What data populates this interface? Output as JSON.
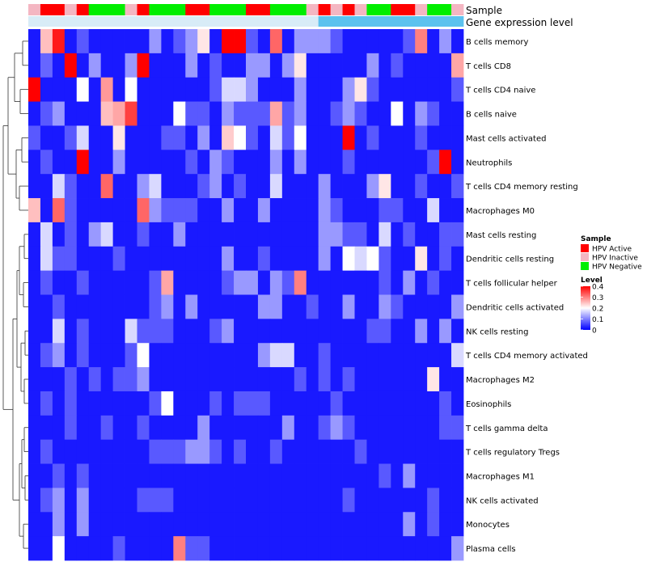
{
  "chart_data": {
    "type": "heatmap",
    "title": "",
    "annotation_tracks": [
      "Sample",
      "Gene expression level"
    ],
    "rows": [
      "B cells memory",
      "T cells CD8",
      "T cells CD4 naive",
      "B cells naive",
      "Mast cells activated",
      "Neutrophils",
      "T cells CD4 memory resting",
      "Macrophages M0",
      "Mast cells resting",
      "Dendritic cells resting",
      "T cells follicular helper",
      "Dendritic cells activated",
      "NK cells resting",
      "T cells CD4 memory activated",
      "Macrophages M2",
      "Eosinophils",
      "T cells gamma delta",
      "T cells regulatory  Tregs",
      "Macrophages M1",
      "NK cells activated",
      "Monocytes",
      "Plasma cells"
    ],
    "sample_groups": [
      "Inactive",
      "Active",
      "Active",
      "Inactive",
      "Active",
      "Negative",
      "Negative",
      "Negative",
      "Inactive",
      "Active",
      "Negative",
      "Negative",
      "Negative",
      "Active",
      "Active",
      "Negative",
      "Negative",
      "Negative",
      "Active",
      "Active",
      "Negative",
      "Negative",
      "Negative",
      "Inactive",
      "Active",
      "Inactive",
      "Active",
      "Inactive",
      "Negative",
      "Negative",
      "Active",
      "Active",
      "Inactive",
      "Negative",
      "Negative",
      "Inactive"
    ],
    "gene_expression_level": [
      0,
      0,
      0,
      0,
      0,
      0,
      0,
      0,
      0,
      0,
      0,
      0,
      0,
      0,
      0,
      0,
      0,
      0,
      0,
      0,
      0,
      0,
      0,
      0,
      1,
      1,
      1,
      1,
      1,
      1,
      1,
      1,
      1,
      1,
      1,
      1
    ],
    "values": [
      [
        0.02,
        0.25,
        0.38,
        0.02,
        0.07,
        0.02,
        0.02,
        0.02,
        0.02,
        0.02,
        0.12,
        0.02,
        0.07,
        0.12,
        0.22,
        0.02,
        0.4,
        0.4,
        0.07,
        0.02,
        0.32,
        0.02,
        0.12,
        0.12,
        0.12,
        0.07,
        0.02,
        0.02,
        0.02,
        0.02,
        0.02,
        0.07,
        0.3,
        0.02,
        0.12,
        0.02
      ],
      [
        0.02,
        0.08,
        0.02,
        0.4,
        0.02,
        0.12,
        0.02,
        0.02,
        0.12,
        0.4,
        0.02,
        0.02,
        0.02,
        0.12,
        0.02,
        0.07,
        0.02,
        0.02,
        0.12,
        0.12,
        0.02,
        0.12,
        0.22,
        0.02,
        0.02,
        0.02,
        0.02,
        0.02,
        0.12,
        0.02,
        0.07,
        0.02,
        0.02,
        0.02,
        0.02,
        0.27
      ],
      [
        0.4,
        0.02,
        0.02,
        0.02,
        0.2,
        0.02,
        0.28,
        0.02,
        0.2,
        0.02,
        0.02,
        0.02,
        0.02,
        0.02,
        0.02,
        0.07,
        0.17,
        0.17,
        0.12,
        0.02,
        0.02,
        0.02,
        0.12,
        0.02,
        0.02,
        0.02,
        0.12,
        0.22,
        0.07,
        0.02,
        0.02,
        0.02,
        0.02,
        0.02,
        0.02,
        0.07
      ],
      [
        0.02,
        0.07,
        0.12,
        0.02,
        0.02,
        0.02,
        0.25,
        0.27,
        0.35,
        0.02,
        0.02,
        0.02,
        0.2,
        0.07,
        0.07,
        0.02,
        0.12,
        0.07,
        0.07,
        0.07,
        0.27,
        0.07,
        0.12,
        0.02,
        0.02,
        0.07,
        0.12,
        0.07,
        0.02,
        0.02,
        0.2,
        0.02,
        0.12,
        0.07,
        0.02,
        0.02
      ],
      [
        0.07,
        0.02,
        0.02,
        0.07,
        0.17,
        0.02,
        0.02,
        0.22,
        0.02,
        0.02,
        0.02,
        0.07,
        0.07,
        0.02,
        0.12,
        0.02,
        0.24,
        0.2,
        0.07,
        0.02,
        0.17,
        0.07,
        0.2,
        0.02,
        0.02,
        0.02,
        0.4,
        0.02,
        0.07,
        0.02,
        0.02,
        0.02,
        0.07,
        0.02,
        0.02,
        0.02
      ],
      [
        0.02,
        0.07,
        0.02,
        0.02,
        0.4,
        0.02,
        0.02,
        0.12,
        0.02,
        0.02,
        0.02,
        0.02,
        0.02,
        0.07,
        0.02,
        0.12,
        0.07,
        0.02,
        0.02,
        0.02,
        0.12,
        0.02,
        0.12,
        0.02,
        0.02,
        0.02,
        0.07,
        0.02,
        0.02,
        0.02,
        0.02,
        0.02,
        0.02,
        0.07,
        0.4,
        0.02
      ],
      [
        0.02,
        0.02,
        0.17,
        0.07,
        0.02,
        0.02,
        0.32,
        0.02,
        0.02,
        0.12,
        0.17,
        0.02,
        0.02,
        0.02,
        0.07,
        0.12,
        0.02,
        0.07,
        0.02,
        0.02,
        0.17,
        0.02,
        0.02,
        0.02,
        0.12,
        0.02,
        0.02,
        0.02,
        0.12,
        0.22,
        0.02,
        0.02,
        0.07,
        0.02,
        0.02,
        0.07
      ],
      [
        0.25,
        0.02,
        0.32,
        0.07,
        0.02,
        0.02,
        0.02,
        0.02,
        0.02,
        0.32,
        0.12,
        0.07,
        0.07,
        0.07,
        0.02,
        0.02,
        0.12,
        0.02,
        0.02,
        0.12,
        0.02,
        0.02,
        0.02,
        0.02,
        0.12,
        0.07,
        0.02,
        0.02,
        0.02,
        0.07,
        0.07,
        0.02,
        0.02,
        0.17,
        0.02,
        0.02
      ],
      [
        0.02,
        0.17,
        0.02,
        0.07,
        0.02,
        0.12,
        0.17,
        0.02,
        0.02,
        0.07,
        0.02,
        0.02,
        0.12,
        0.02,
        0.02,
        0.02,
        0.02,
        0.02,
        0.02,
        0.02,
        0.02,
        0.02,
        0.02,
        0.02,
        0.12,
        0.12,
        0.07,
        0.07,
        0.02,
        0.17,
        0.02,
        0.07,
        0.02,
        0.02,
        0.07,
        0.07
      ],
      [
        0.02,
        0.17,
        0.07,
        0.07,
        0.02,
        0.02,
        0.02,
        0.07,
        0.02,
        0.02,
        0.02,
        0.02,
        0.02,
        0.02,
        0.02,
        0.02,
        0.12,
        0.02,
        0.02,
        0.07,
        0.02,
        0.02,
        0.02,
        0.02,
        0.12,
        0.02,
        0.2,
        0.17,
        0.2,
        0.07,
        0.02,
        0.02,
        0.22,
        0.02,
        0.07,
        0.02
      ],
      [
        0.02,
        0.07,
        0.02,
        0.02,
        0.07,
        0.02,
        0.02,
        0.02,
        0.02,
        0.02,
        0.07,
        0.27,
        0.02,
        0.02,
        0.02,
        0.02,
        0.07,
        0.12,
        0.12,
        0.02,
        0.12,
        0.07,
        0.3,
        0.02,
        0.02,
        0.02,
        0.02,
        0.02,
        0.02,
        0.07,
        0.02,
        0.12,
        0.02,
        0.07,
        0.02,
        0.02
      ],
      [
        0.02,
        0.02,
        0.07,
        0.02,
        0.02,
        0.02,
        0.02,
        0.02,
        0.02,
        0.02,
        0.07,
        0.12,
        0.02,
        0.12,
        0.02,
        0.02,
        0.02,
        0.02,
        0.02,
        0.12,
        0.12,
        0.02,
        0.02,
        0.07,
        0.02,
        0.02,
        0.12,
        0.02,
        0.02,
        0.12,
        0.07,
        0.02,
        0.02,
        0.02,
        0.02,
        0.12
      ],
      [
        0.02,
        0.02,
        0.17,
        0.02,
        0.07,
        0.02,
        0.02,
        0.02,
        0.17,
        0.07,
        0.07,
        0.07,
        0.02,
        0.02,
        0.02,
        0.07,
        0.12,
        0.02,
        0.02,
        0.02,
        0.02,
        0.02,
        0.02,
        0.02,
        0.02,
        0.02,
        0.02,
        0.02,
        0.07,
        0.07,
        0.02,
        0.02,
        0.12,
        0.02,
        0.12,
        0.02
      ],
      [
        0.02,
        0.07,
        0.12,
        0.02,
        0.07,
        0.02,
        0.02,
        0.02,
        0.07,
        0.2,
        0.02,
        0.02,
        0.02,
        0.02,
        0.02,
        0.02,
        0.02,
        0.02,
        0.02,
        0.12,
        0.17,
        0.17,
        0.02,
        0.02,
        0.07,
        0.02,
        0.02,
        0.02,
        0.02,
        0.02,
        0.02,
        0.02,
        0.02,
        0.02,
        0.02,
        0.17
      ],
      [
        0.02,
        0.02,
        0.02,
        0.07,
        0.02,
        0.07,
        0.02,
        0.07,
        0.07,
        0.12,
        0.02,
        0.02,
        0.02,
        0.02,
        0.02,
        0.02,
        0.02,
        0.02,
        0.02,
        0.02,
        0.02,
        0.02,
        0.07,
        0.02,
        0.07,
        0.02,
        0.07,
        0.02,
        0.02,
        0.02,
        0.02,
        0.02,
        0.02,
        0.22,
        0.02,
        0.02
      ],
      [
        0.02,
        0.07,
        0.02,
        0.07,
        0.02,
        0.02,
        0.02,
        0.02,
        0.02,
        0.02,
        0.07,
        0.2,
        0.02,
        0.02,
        0.02,
        0.07,
        0.02,
        0.07,
        0.07,
        0.07,
        0.02,
        0.02,
        0.02,
        0.02,
        0.02,
        0.07,
        0.02,
        0.02,
        0.02,
        0.02,
        0.02,
        0.02,
        0.02,
        0.02,
        0.07,
        0.02
      ],
      [
        0.02,
        0.02,
        0.02,
        0.07,
        0.02,
        0.02,
        0.07,
        0.02,
        0.02,
        0.07,
        0.02,
        0.02,
        0.02,
        0.02,
        0.12,
        0.02,
        0.02,
        0.02,
        0.02,
        0.02,
        0.02,
        0.12,
        0.02,
        0.02,
        0.07,
        0.12,
        0.07,
        0.02,
        0.02,
        0.02,
        0.02,
        0.02,
        0.02,
        0.02,
        0.07,
        0.07
      ],
      [
        0.02,
        0.07,
        0.02,
        0.02,
        0.02,
        0.02,
        0.02,
        0.02,
        0.02,
        0.02,
        0.07,
        0.07,
        0.07,
        0.12,
        0.12,
        0.07,
        0.02,
        0.07,
        0.02,
        0.02,
        0.07,
        0.02,
        0.02,
        0.02,
        0.02,
        0.02,
        0.02,
        0.07,
        0.02,
        0.02,
        0.02,
        0.02,
        0.02,
        0.02,
        0.02,
        0.02
      ],
      [
        0.02,
        0.02,
        0.07,
        0.02,
        0.07,
        0.02,
        0.02,
        0.02,
        0.02,
        0.02,
        0.02,
        0.02,
        0.02,
        0.02,
        0.02,
        0.02,
        0.02,
        0.02,
        0.02,
        0.02,
        0.02,
        0.02,
        0.02,
        0.02,
        0.02,
        0.02,
        0.02,
        0.02,
        0.02,
        0.07,
        0.02,
        0.12,
        0.02,
        0.02,
        0.02,
        0.02
      ],
      [
        0.02,
        0.07,
        0.12,
        0.02,
        0.12,
        0.02,
        0.02,
        0.02,
        0.02,
        0.07,
        0.07,
        0.07,
        0.02,
        0.02,
        0.02,
        0.02,
        0.02,
        0.02,
        0.02,
        0.02,
        0.02,
        0.02,
        0.02,
        0.02,
        0.02,
        0.02,
        0.07,
        0.02,
        0.02,
        0.02,
        0.02,
        0.02,
        0.02,
        0.07,
        0.02,
        0.02
      ],
      [
        0.02,
        0.02,
        0.12,
        0.02,
        0.12,
        0.02,
        0.02,
        0.02,
        0.02,
        0.02,
        0.02,
        0.02,
        0.02,
        0.02,
        0.02,
        0.02,
        0.02,
        0.02,
        0.02,
        0.02,
        0.02,
        0.02,
        0.02,
        0.02,
        0.02,
        0.02,
        0.02,
        0.02,
        0.02,
        0.02,
        0.02,
        0.12,
        0.02,
        0.07,
        0.02,
        0.02
      ],
      [
        0.02,
        0.02,
        0.2,
        0.02,
        0.02,
        0.02,
        0.02,
        0.07,
        0.02,
        0.02,
        0.02,
        0.02,
        0.3,
        0.07,
        0.07,
        0.02,
        0.02,
        0.02,
        0.02,
        0.02,
        0.02,
        0.02,
        0.02,
        0.02,
        0.02,
        0.02,
        0.02,
        0.02,
        0.02,
        0.02,
        0.02,
        0.02,
        0.02,
        0.02,
        0.02,
        0.12
      ]
    ],
    "legend": {
      "sample": {
        "title": "Sample",
        "entries": [
          {
            "key": "Active",
            "label": "HPV Active",
            "color": "#ff0000"
          },
          {
            "key": "Inactive",
            "label": "HPV Inactive",
            "color": "#f4b6c2"
          },
          {
            "key": "Negative",
            "label": "HPV Negative",
            "color": "#00ee00"
          }
        ]
      },
      "level": {
        "title": "Level",
        "ticks": [
          "0.4",
          "0.3",
          "0.2",
          "0.1",
          "0"
        ],
        "range": [
          0,
          0.4
        ],
        "colors": {
          "low": "#0000ff",
          "mid": "#ffffff",
          "high": "#ff0000"
        }
      }
    },
    "gene_expression_colors": [
      "#d8ecf7",
      "#5cc2ee"
    ]
  }
}
